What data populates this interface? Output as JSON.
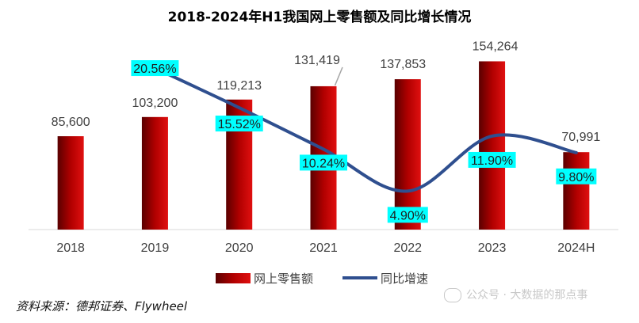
{
  "chart_data": {
    "type": "bar",
    "title": "2018-2024年H1我国网上零售额及同比增长情况",
    "categories": [
      "2018",
      "2019",
      "2020",
      "2021",
      "2022",
      "2023",
      "2024H"
    ],
    "series": [
      {
        "name": "网上零售额",
        "kind": "bar",
        "values": [
          85600,
          103200,
          119213,
          131419,
          137853,
          154264,
          70991
        ],
        "labels": [
          "85,600",
          "103,200",
          "119,213",
          "131,419",
          "137,853",
          "154,264",
          "70,991"
        ],
        "color": "#c00000"
      },
      {
        "name": "同比增速",
        "kind": "line",
        "values": [
          null,
          20.56,
          15.52,
          10.24,
          4.9,
          11.9,
          9.8
        ],
        "labels": [
          "",
          "20.56%",
          "15.52%",
          "10.24%",
          "4.90%",
          "11.90%",
          "9.80%"
        ],
        "color": "#2f4f8f",
        "label_bg": "#00ffff"
      }
    ],
    "ylim_bar": [
      0,
      180000
    ],
    "ylim_line": [
      0,
      25
    ],
    "xlabel": "",
    "ylabel": "",
    "legend": "bottom",
    "grid": false
  },
  "source": "资料来源：德邦证券、Flywheel",
  "watermark": "公众号 · 大数据的那点事"
}
